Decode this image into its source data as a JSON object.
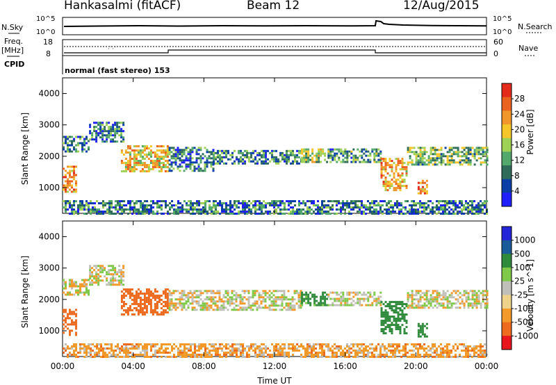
{
  "header": {
    "station": "Hankasalmi (fitACF)",
    "beam": "Beam 12",
    "date": "12/Aug/2015"
  },
  "nsky_panel": {
    "left_label": "N.Sky",
    "right_label": "N.Search",
    "left_ticks": [
      "10^5",
      "10^0"
    ],
    "right_ticks": [
      "10^5",
      "10^0"
    ]
  },
  "freq_panel": {
    "left_label": "Freq.",
    "left_unit": "[MHz]",
    "left_ticks": [
      "18",
      "8"
    ],
    "right_label": "Nave",
    "right_ticks": [
      "60",
      "0"
    ]
  },
  "cpid": {
    "label": "CPID",
    "value": "normal (fast stereo) 153"
  },
  "colors": {
    "power": [
      "#2020ff",
      "#0a3fa8",
      "#2f6c5a",
      "#53a86b",
      "#9fd156",
      "#f5c52a",
      "#f0962b",
      "#ea6220",
      "#e32a1b"
    ],
    "velocity": [
      "#e8151c",
      "#ee6a1f",
      "#f39a2b",
      "#eed28a",
      "#c0c0b8",
      "#7fc94a",
      "#2f8a3c",
      "#1a5c9a",
      "#2424d8"
    ]
  },
  "chart_data": [
    {
      "type": "heatmap",
      "title": "",
      "xlabel": "Time UT",
      "ylabel": "Slant Range [km]",
      "x_ticks": [
        "00:00",
        "04:00",
        "08:00",
        "12:00",
        "16:00",
        "20:00",
        "00:00"
      ],
      "xlim_hours": [
        0,
        24
      ],
      "y_ticks": [
        "4000",
        "3000",
        "2000",
        "1000"
      ],
      "ylim": [
        180,
        4500
      ],
      "colorbar": {
        "label": "Power [dB]",
        "ticks": [
          "28",
          "24",
          "20",
          "16",
          "12",
          "8",
          "4"
        ],
        "range": [
          0,
          30
        ]
      },
      "regions": [
        {
          "t": [
            0.0,
            0.8
          ],
          "r": [
            850,
            1700
          ],
          "value": 22
        },
        {
          "t": [
            0.0,
            1.5
          ],
          "r": [
            2150,
            2650
          ],
          "value": 9
        },
        {
          "t": [
            1.5,
            3.5
          ],
          "r": [
            2500,
            3100
          ],
          "value": 8
        },
        {
          "t": [
            3.3,
            6.0
          ],
          "r": [
            1550,
            2350
          ],
          "value": 19
        },
        {
          "t": [
            6.0,
            8.5
          ],
          "r": [
            1550,
            2300
          ],
          "value": 8
        },
        {
          "t": [
            8.5,
            13.5
          ],
          "r": [
            1800,
            2200
          ],
          "value": 9
        },
        {
          "t": [
            13.5,
            15.0
          ],
          "r": [
            1850,
            2250
          ],
          "value": 14
        },
        {
          "t": [
            15.0,
            18.0
          ],
          "r": [
            1800,
            2250
          ],
          "value": 10
        },
        {
          "t": [
            18.0,
            19.5
          ],
          "r": [
            950,
            1950
          ],
          "value": 20
        },
        {
          "t": [
            19.5,
            24.0
          ],
          "r": [
            1750,
            2300
          ],
          "value": 13
        },
        {
          "t": [
            20.1,
            20.6
          ],
          "r": [
            800,
            1250
          ],
          "value": 22
        },
        {
          "t": [
            0.0,
            24.0
          ],
          "r": [
            200,
            600
          ],
          "value": 8
        }
      ]
    },
    {
      "type": "heatmap",
      "title": "",
      "xlabel": "Time UT",
      "ylabel": "Slant Range [km]",
      "x_ticks": [
        "00:00",
        "04:00",
        "08:00",
        "12:00",
        "16:00",
        "20:00",
        "00:00"
      ],
      "xlim_hours": [
        0,
        24
      ],
      "y_ticks": [
        "4000",
        "3000",
        "2000",
        "1000"
      ],
      "ylim": [
        180,
        4500
      ],
      "colorbar": {
        "label": "Velocity [m s^-1]",
        "ticks": [
          "1000",
          "500",
          "100",
          "25",
          "-25",
          "-100",
          "-500",
          "-1000"
        ]
      },
      "regions": [
        {
          "t": [
            0.0,
            0.8
          ],
          "r": [
            850,
            1700
          ],
          "value": -400
        },
        {
          "t": [
            0.0,
            1.5
          ],
          "r": [
            2150,
            2650
          ],
          "value": 0
        },
        {
          "t": [
            1.5,
            3.5
          ],
          "r": [
            2500,
            3100
          ],
          "value": 0
        },
        {
          "t": [
            3.3,
            6.0
          ],
          "r": [
            1550,
            2350
          ],
          "value": -250
        },
        {
          "t": [
            6.0,
            13.5
          ],
          "r": [
            1700,
            2300
          ],
          "value": 0
        },
        {
          "t": [
            13.5,
            15.0
          ],
          "r": [
            1850,
            2250
          ],
          "value": 150
        },
        {
          "t": [
            15.0,
            18.0
          ],
          "r": [
            1800,
            2250
          ],
          "value": 0
        },
        {
          "t": [
            18.0,
            19.5
          ],
          "r": [
            950,
            1950
          ],
          "value": 400
        },
        {
          "t": [
            19.5,
            24.0
          ],
          "r": [
            1750,
            2300
          ],
          "value": 0
        },
        {
          "t": [
            20.1,
            20.6
          ],
          "r": [
            800,
            1250
          ],
          "value": 300
        },
        {
          "t": [
            0.0,
            24.0
          ],
          "r": [
            200,
            600
          ],
          "value": -60
        }
      ]
    }
  ]
}
